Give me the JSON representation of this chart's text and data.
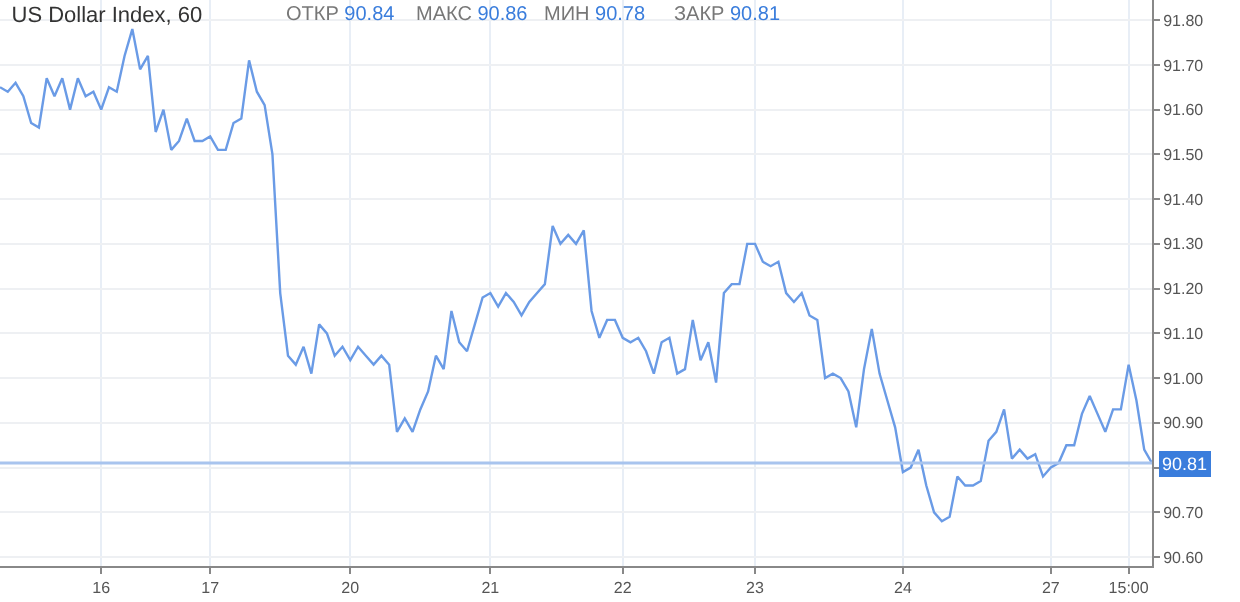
{
  "chart_data": {
    "type": "line",
    "title": "US Dollar Index, 60",
    "annotations": [
      "ОТКР 90.84",
      "МАКС 90.86",
      "МИН 90.78",
      "ЗАКР 90.81"
    ],
    "categories": [
      null,
      null,
      null,
      null,
      null,
      null,
      null,
      null,
      null,
      null,
      null,
      null,
      null,
      "16",
      null,
      null,
      null,
      null,
      null,
      null,
      null,
      null,
      null,
      null,
      null,
      null,
      null,
      "17",
      null,
      null,
      null,
      null,
      null,
      null,
      null,
      null,
      null,
      null,
      null,
      null,
      null,
      null,
      null,
      null,
      null,
      "20",
      null,
      null,
      null,
      null,
      null,
      null,
      null,
      null,
      null,
      null,
      null,
      null,
      null,
      null,
      null,
      null,
      null,
      "21",
      null,
      null,
      null,
      null,
      null,
      null,
      null,
      null,
      null,
      null,
      null,
      null,
      null,
      null,
      null,
      null,
      "22",
      null,
      null,
      null,
      null,
      null,
      null,
      null,
      null,
      null,
      null,
      null,
      null,
      null,
      null,
      null,
      null,
      "23",
      null,
      null,
      null,
      null,
      null,
      null,
      null,
      null,
      null,
      null,
      null,
      null,
      null,
      null,
      null,
      null,
      null,
      null,
      "24",
      null,
      null,
      null,
      null,
      null,
      null,
      null,
      null,
      null,
      null,
      null,
      null,
      null,
      null,
      null,
      null,
      null,
      null,
      "27",
      null,
      null,
      null,
      null,
      null,
      null,
      null,
      null,
      null,
      "15:00",
      null,
      null,
      null
    ],
    "series": [
      {
        "color": "#6a9be6",
        "values": [
          91.65,
          91.64,
          91.66,
          91.63,
          91.57,
          91.56,
          91.67,
          91.63,
          91.67,
          91.6,
          91.67,
          91.63,
          91.64,
          91.6,
          91.65,
          91.64,
          91.72,
          91.78,
          91.69,
          91.72,
          91.55,
          91.6,
          91.51,
          91.53,
          91.58,
          91.53,
          91.53,
          91.54,
          91.51,
          91.51,
          91.57,
          91.58,
          91.71,
          91.64,
          91.61,
          91.5,
          91.19,
          91.05,
          91.03,
          91.07,
          91.01,
          91.12,
          91.1,
          91.05,
          91.07,
          91.04,
          91.07,
          91.05,
          91.03,
          91.05,
          91.03,
          90.88,
          90.91,
          90.88,
          90.93,
          90.97,
          91.05,
          91.02,
          91.15,
          91.08,
          91.06,
          91.12,
          91.18,
          91.19,
          91.16,
          91.19,
          91.17,
          91.14,
          91.17,
          91.19,
          91.21,
          91.34,
          91.3,
          91.32,
          91.3,
          91.33,
          91.15,
          91.09,
          91.13,
          91.13,
          91.09,
          91.08,
          91.09,
          91.06,
          91.01,
          91.08,
          91.09,
          91.01,
          91.02,
          91.13,
          91.04,
          91.08,
          90.99,
          91.19,
          91.21,
          91.21,
          91.3,
          91.3,
          91.26,
          91.25,
          91.26,
          91.19,
          91.17,
          91.19,
          91.14,
          91.13,
          91.0,
          91.01,
          91.0,
          90.97,
          90.89,
          91.02,
          91.11,
          91.01,
          90.95,
          90.89,
          90.79,
          90.8,
          90.84,
          90.76,
          90.7,
          90.68,
          90.69,
          90.78,
          90.76,
          90.76,
          90.77,
          90.86,
          90.88,
          90.93,
          90.82,
          90.84,
          90.82,
          90.83,
          90.78,
          90.8,
          90.81,
          90.85,
          90.85,
          90.92,
          90.96,
          90.92,
          90.88,
          90.93,
          90.93,
          91.03,
          90.95,
          90.84,
          90.81
        ]
      }
    ],
    "ylim": [
      90.58,
      91.845
    ],
    "yticks": [
      {
        "value": 90.6,
        "label": "90.60"
      },
      {
        "value": 90.7,
        "label": "90.70"
      },
      {
        "value": 90.8,
        "label": null
      },
      {
        "value": 90.9,
        "label": "90.90"
      },
      {
        "value": 91.0,
        "label": "91.00"
      },
      {
        "value": 91.1,
        "label": "91.10"
      },
      {
        "value": 91.2,
        "label": "91.20"
      },
      {
        "value": 91.3,
        "label": "91.30"
      },
      {
        "value": 91.4,
        "label": "91.40"
      },
      {
        "value": 91.5,
        "label": "91.50"
      },
      {
        "value": 91.6,
        "label": "91.60"
      },
      {
        "value": 91.7,
        "label": "91.70"
      },
      {
        "value": 91.8,
        "label": "91.80"
      }
    ],
    "ref_lines": [
      {
        "axis": "y",
        "value": 90.81,
        "label": "90.81",
        "color": "#a8c4ee"
      }
    ],
    "grid": true,
    "marker": "none",
    "line_style": "solid"
  }
}
